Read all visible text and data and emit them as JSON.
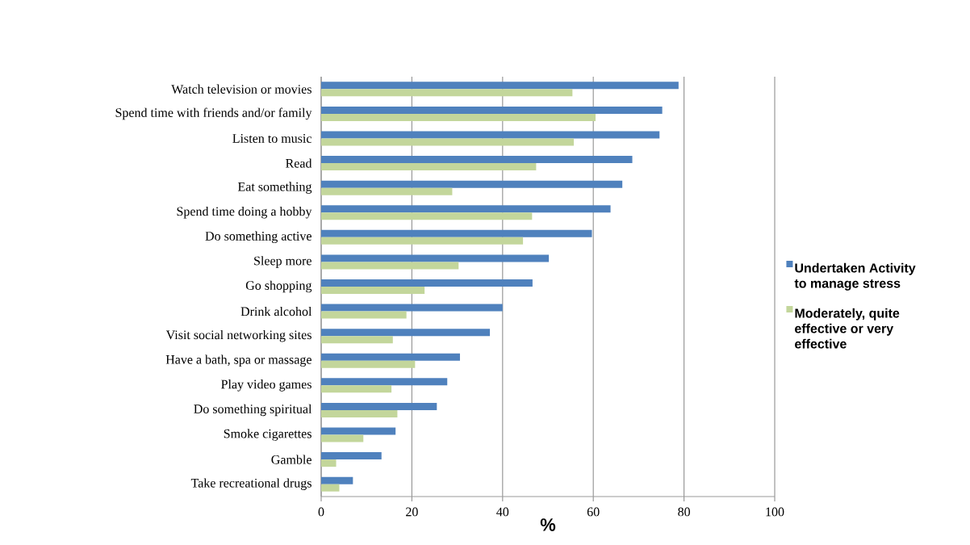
{
  "chart_data": {
    "type": "bar",
    "orientation": "horizontal",
    "xlabel": "%",
    "categories": [
      "Watch television or movies",
      "Spend time with friends and/or family",
      "Listen to music",
      "Read",
      "Eat something",
      "Spend time doing a hobby",
      "Do something active",
      "Sleep more",
      "Go shopping",
      "Drink alcohol",
      "Visit social networking sites",
      "Have a bath, spa or massage",
      "Play video games",
      "Do something spiritual",
      "Smoke cigarettes",
      "Gamble",
      "Take recreational drugs"
    ],
    "series": [
      {
        "name": "Undertaken Activity to manage stress",
        "color": "#4f81bd",
        "values": [
          78.8,
          75.2,
          74.6,
          68.6,
          66.4,
          63.8,
          59.7,
          50.2,
          46.6,
          40.0,
          37.2,
          30.6,
          27.8,
          25.5,
          16.4,
          13.3,
          7.0
        ]
      },
      {
        "name": "Moderately, quite effective or very effective",
        "color": "#c3d69b",
        "values": [
          55.4,
          60.5,
          55.7,
          47.4,
          28.9,
          46.5,
          44.5,
          30.3,
          22.8,
          18.8,
          15.8,
          20.7,
          15.5,
          16.8,
          9.3,
          3.3,
          4.0
        ]
      }
    ],
    "xlim": [
      0,
      100
    ],
    "xticks": [
      0,
      20,
      40,
      60,
      80,
      100
    ],
    "grid": "x",
    "legend": "right"
  }
}
